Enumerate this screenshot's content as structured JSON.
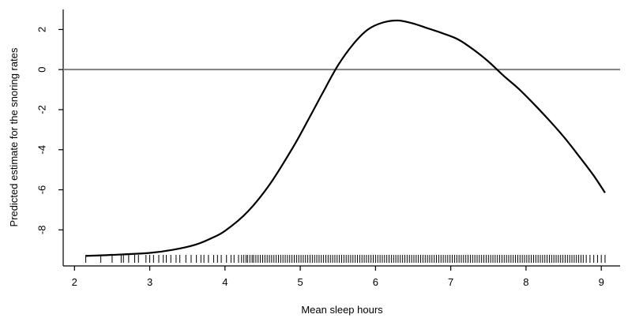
{
  "chart_data": {
    "type": "line",
    "title": "",
    "xlabel": "Mean sleep hours",
    "ylabel": "Predicted estimate for the snoring rates",
    "xlim": [
      1.85,
      9.25
    ],
    "ylim": [
      -9.8,
      3.0
    ],
    "xticks": [
      2,
      3,
      4,
      5,
      6,
      7,
      8,
      9
    ],
    "yticks": [
      -8,
      -6,
      -4,
      -2,
      0,
      2
    ],
    "grid": false,
    "reference_line": {
      "y": 0,
      "color": "#808080"
    },
    "series": [
      {
        "color": "#000000",
        "x": [
          2.15,
          2.5,
          3.0,
          3.3,
          3.6,
          3.8,
          4.0,
          4.3,
          4.6,
          4.9,
          5.1,
          5.3,
          5.5,
          5.7,
          5.9,
          6.1,
          6.3,
          6.5,
          6.7,
          6.9,
          7.1,
          7.3,
          7.5,
          7.7,
          7.9,
          8.1,
          8.3,
          8.5,
          8.7,
          8.9,
          9.05
        ],
        "y": [
          -9.3,
          -9.25,
          -9.15,
          -9.0,
          -8.75,
          -8.45,
          -8.05,
          -7.1,
          -5.7,
          -3.9,
          -2.55,
          -1.15,
          0.2,
          1.25,
          2.0,
          2.35,
          2.45,
          2.3,
          2.05,
          1.8,
          1.5,
          1.0,
          0.4,
          -0.3,
          -0.95,
          -1.7,
          -2.5,
          -3.35,
          -4.3,
          -5.3,
          -6.15
        ]
      }
    ],
    "rug": {
      "color": "#000000",
      "x": [
        2.15,
        2.35,
        2.5,
        2.62,
        2.65,
        2.72,
        2.8,
        2.85,
        2.95,
        3.0,
        3.05,
        3.12,
        3.18,
        3.22,
        3.28,
        3.35,
        3.4,
        3.48,
        3.55,
        3.62,
        3.68,
        3.72,
        3.78,
        3.85,
        3.9,
        3.95,
        4.02,
        4.08,
        4.12,
        4.18,
        4.22,
        4.25,
        4.28,
        4.3,
        4.33,
        4.36,
        4.38,
        4.41,
        4.44,
        4.47,
        4.5,
        4.53,
        4.56,
        4.59,
        4.62,
        4.65,
        4.68,
        4.71,
        4.74,
        4.77,
        4.8,
        4.83,
        4.86,
        4.89,
        4.92,
        4.95,
        4.98,
        5.01,
        5.04,
        5.07,
        5.1,
        5.13,
        5.16,
        5.19,
        5.22,
        5.25,
        5.28,
        5.31,
        5.34,
        5.37,
        5.4,
        5.43,
        5.46,
        5.49,
        5.52,
        5.55,
        5.58,
        5.61,
        5.64,
        5.67,
        5.7,
        5.73,
        5.76,
        5.79,
        5.82,
        5.85,
        5.88,
        5.91,
        5.94,
        5.97,
        6.0,
        6.03,
        6.06,
        6.09,
        6.12,
        6.15,
        6.18,
        6.21,
        6.24,
        6.27,
        6.3,
        6.33,
        6.36,
        6.39,
        6.42,
        6.45,
        6.48,
        6.51,
        6.54,
        6.57,
        6.6,
        6.63,
        6.66,
        6.69,
        6.72,
        6.75,
        6.78,
        6.81,
        6.84,
        6.87,
        6.9,
        6.93,
        6.96,
        6.99,
        7.02,
        7.05,
        7.08,
        7.11,
        7.14,
        7.17,
        7.2,
        7.23,
        7.26,
        7.29,
        7.32,
        7.35,
        7.38,
        7.41,
        7.44,
        7.47,
        7.5,
        7.53,
        7.56,
        7.59,
        7.62,
        7.65,
        7.68,
        7.71,
        7.74,
        7.77,
        7.8,
        7.83,
        7.86,
        7.89,
        7.92,
        7.95,
        7.98,
        8.01,
        8.04,
        8.07,
        8.1,
        8.13,
        8.16,
        8.19,
        8.22,
        8.25,
        8.28,
        8.31,
        8.34,
        8.37,
        8.4,
        8.43,
        8.46,
        8.49,
        8.52,
        8.55,
        8.58,
        8.61,
        8.64,
        8.67,
        8.7,
        8.73,
        8.76,
        8.8,
        8.85,
        8.9,
        8.95,
        9.0,
        9.05
      ]
    }
  }
}
